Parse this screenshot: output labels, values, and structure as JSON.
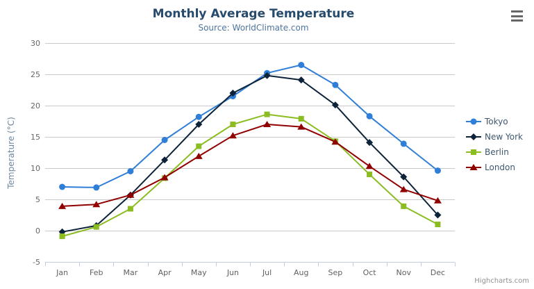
{
  "credit": {
    "label": "Highcharts.com"
  },
  "chart_data": {
    "type": "line",
    "title": "Monthly Average Temperature",
    "subtitle": "Source: WorldClimate.com",
    "xlabel": "",
    "ylabel": "Temperature (°C)",
    "categories": [
      "Jan",
      "Feb",
      "Mar",
      "Apr",
      "May",
      "Jun",
      "Jul",
      "Aug",
      "Sep",
      "Oct",
      "Nov",
      "Dec"
    ],
    "ylim": [
      -5,
      30
    ],
    "yticks": [
      -5,
      0,
      5,
      10,
      15,
      20,
      25,
      30
    ],
    "grid": true,
    "legend_position": "right",
    "series": [
      {
        "name": "Tokyo",
        "color": "#2f7ed8",
        "marker": "circle",
        "values": [
          7.0,
          6.9,
          9.5,
          14.5,
          18.2,
          21.5,
          25.2,
          26.5,
          23.3,
          18.3,
          13.9,
          9.6
        ]
      },
      {
        "name": "New York",
        "color": "#0d233a",
        "marker": "diamond",
        "values": [
          -0.2,
          0.8,
          5.7,
          11.3,
          17.0,
          22.0,
          24.8,
          24.1,
          20.1,
          14.1,
          8.6,
          2.5
        ]
      },
      {
        "name": "Berlin",
        "color": "#8bbc21",
        "marker": "square",
        "values": [
          -0.9,
          0.6,
          3.5,
          8.4,
          13.5,
          17.0,
          18.6,
          17.9,
          14.3,
          9.0,
          3.9,
          1.0
        ]
      },
      {
        "name": "London",
        "color": "#910000",
        "marker": "triangle",
        "values": [
          3.9,
          4.2,
          5.7,
          8.5,
          11.9,
          15.2,
          17.0,
          16.6,
          14.2,
          10.3,
          6.6,
          4.8
        ]
      }
    ]
  }
}
